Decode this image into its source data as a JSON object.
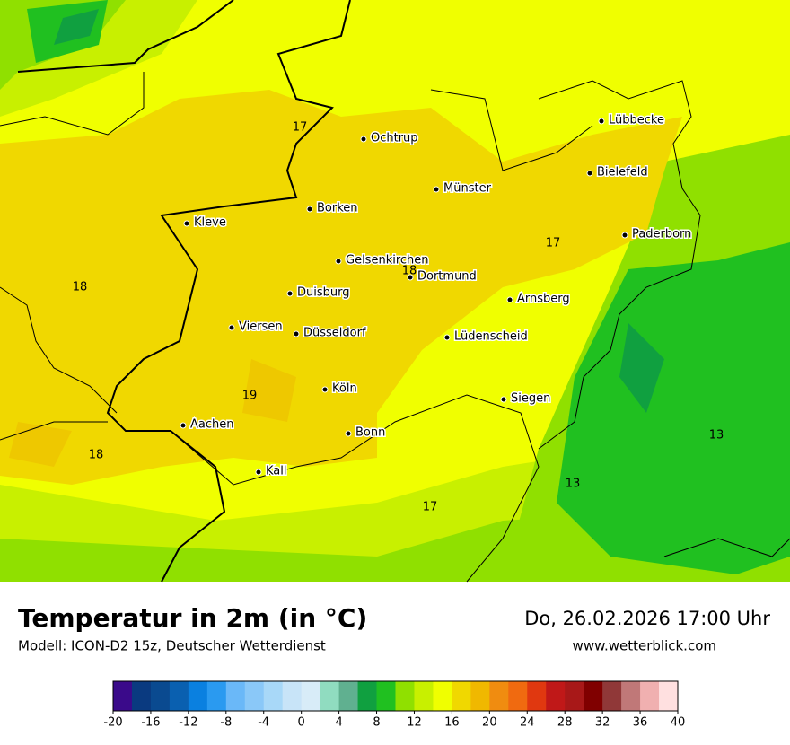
{
  "header": {
    "title": "Temperatur in 2m (in °C)",
    "subtitle": "Modell: ICON-D2 15z, Deutscher Wetterdienst",
    "datetime": "Do, 26.02.2026 17:00 Uhr",
    "website": "www.wetterblick.com"
  },
  "map": {
    "cities": [
      "Lübbecke",
      "Ochtrup",
      "Bielefeld",
      "Münster",
      "Borken",
      "Kleve",
      "Paderborn",
      "Gelsenkirchen",
      "Dortmund",
      "Duisburg",
      "Arnsberg",
      "Viersen",
      "Düsseldorf",
      "Lüdenscheid",
      "Köln",
      "Siegen",
      "Aachen",
      "Bonn",
      "Kall"
    ],
    "labels": [
      17,
      17,
      18,
      18,
      19,
      18,
      17,
      13,
      13
    ]
  },
  "colorbar": {
    "ticks": [
      -20,
      -16,
      -12,
      -8,
      -4,
      0,
      4,
      8,
      12,
      16,
      20,
      24,
      28,
      32,
      36,
      40
    ],
    "colors": [
      "#3a0a8a",
      "#0a3a80",
      "#0a4a90",
      "#0a60b0",
      "#0a80e0",
      "#2a9af0",
      "#6ab8f8",
      "#8ac8f8",
      "#a8d8f8",
      "#c8e4f8",
      "#d8ecf8",
      "#90dcc0",
      "#60b090",
      "#10a040",
      "#20c020",
      "#90e000",
      "#c8f000",
      "#f0ff00",
      "#f0d800",
      "#f0b800",
      "#f08c10",
      "#f06a10",
      "#e03810",
      "#c01818",
      "#a81818",
      "#800000",
      "#903838",
      "#c07878",
      "#f0b0b0",
      "#ffe0e0"
    ]
  }
}
